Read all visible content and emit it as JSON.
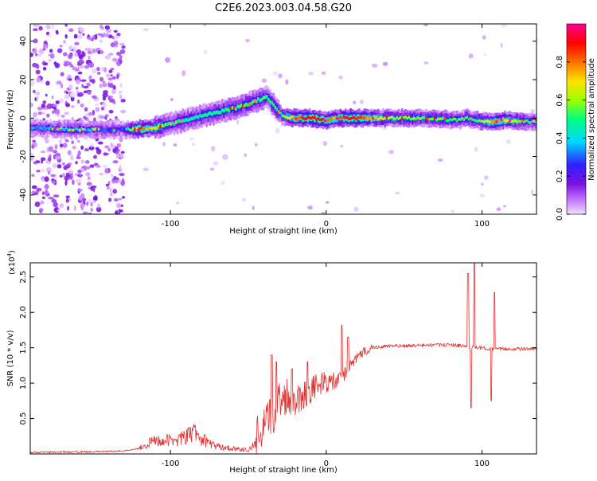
{
  "title": "C2E6.2023.003.04.58.G20",
  "chart_data": [
    {
      "type": "heatmap",
      "xlabel": "Height of straight line (km)",
      "ylabel": "Frequency (Hz)",
      "xlim": [
        -190,
        135
      ],
      "ylim": [
        -50,
        49
      ],
      "x_ticks": [
        -100,
        0,
        100
      ],
      "y_ticks": [
        -40,
        -20,
        0,
        20,
        40
      ],
      "colorbar": {
        "label": "Normalized spectral amplitude",
        "range": [
          0.0,
          1.0
        ],
        "ticks": [
          0.0,
          0.2,
          0.4,
          0.6,
          0.8
        ],
        "tick_labels": [
          "0.0",
          "0.2",
          "0.4",
          "0.6",
          "0.8"
        ],
        "colors": [
          "#f0e0ff",
          "#c070ff",
          "#7a10e0",
          "#3020ff",
          "#00d8ff",
          "#00ff80",
          "#a0ff00",
          "#ffe000",
          "#ff7000",
          "#ff0000",
          "#ff0090"
        ]
      },
      "ridge_center_hz": [
        [
          -190,
          -5
        ],
        [
          -160,
          -6
        ],
        [
          -135,
          -6
        ],
        [
          -125,
          -6
        ],
        [
          -110,
          -5
        ],
        [
          -95,
          -2
        ],
        [
          -80,
          1
        ],
        [
          -65,
          4
        ],
        [
          -55,
          6
        ],
        [
          -45,
          9
        ],
        [
          -38,
          11
        ],
        [
          -33,
          6
        ],
        [
          -28,
          1
        ],
        [
          -20,
          0
        ],
        [
          -10,
          0
        ],
        [
          0,
          -1
        ],
        [
          10,
          0
        ],
        [
          30,
          0
        ],
        [
          60,
          0
        ],
        [
          85,
          -1
        ],
        [
          90,
          0
        ],
        [
          95,
          -1
        ],
        [
          105,
          -2
        ],
        [
          115,
          -1
        ],
        [
          135,
          -2
        ]
      ],
      "ridge_amplitude": [
        [
          -190,
          0.35
        ],
        [
          -160,
          0.4
        ],
        [
          -130,
          0.3
        ],
        [
          -120,
          0.85
        ],
        [
          -100,
          0.45
        ],
        [
          -80,
          0.45
        ],
        [
          -60,
          0.55
        ],
        [
          -45,
          0.5
        ],
        [
          -30,
          0.5
        ],
        [
          -15,
          0.9
        ],
        [
          -5,
          0.95
        ],
        [
          5,
          0.75
        ],
        [
          15,
          0.95
        ],
        [
          40,
          0.6
        ],
        [
          70,
          0.55
        ],
        [
          95,
          0.5
        ],
        [
          110,
          0.8
        ],
        [
          135,
          0.4
        ]
      ]
    },
    {
      "type": "line",
      "xlabel": "Height of straight line (km)",
      "ylabel": "SNR (10 * v/v)",
      "y_multiplier": "(x10",
      "y_multiplier_exp": "4",
      "y_multiplier_close": ")",
      "xlim": [
        -190,
        135
      ],
      "ylim": [
        0,
        2.7
      ],
      "x_ticks": [
        -100,
        0,
        100
      ],
      "y_ticks": [
        0.5,
        1.0,
        1.5,
        2.0,
        2.5
      ],
      "y_tick_labels": [
        "0.5",
        "1.0",
        "1.5",
        "2.0",
        "2.5"
      ],
      "line_color": "#e03030",
      "series_envelope": [
        [
          -190,
          0.02
        ],
        [
          -150,
          0.03
        ],
        [
          -130,
          0.04
        ],
        [
          -120,
          0.08
        ],
        [
          -110,
          0.18
        ],
        [
          -100,
          0.18
        ],
        [
          -90,
          0.22
        ],
        [
          -85,
          0.3
        ],
        [
          -80,
          0.2
        ],
        [
          -70,
          0.1
        ],
        [
          -50,
          0.05
        ],
        [
          -45,
          0.15
        ],
        [
          -40,
          0.3
        ],
        [
          -35,
          0.5
        ],
        [
          -30,
          0.75
        ],
        [
          -25,
          0.8
        ],
        [
          -20,
          0.75
        ],
        [
          -15,
          0.8
        ],
        [
          -10,
          0.9
        ],
        [
          -5,
          0.95
        ],
        [
          0,
          1.0
        ],
        [
          5,
          1.0
        ],
        [
          10,
          1.05
        ],
        [
          15,
          1.25
        ],
        [
          20,
          1.35
        ],
        [
          25,
          1.45
        ],
        [
          30,
          1.5
        ],
        [
          40,
          1.52
        ],
        [
          60,
          1.53
        ],
        [
          80,
          1.54
        ],
        [
          88,
          1.52
        ],
        [
          95,
          1.5
        ],
        [
          110,
          1.48
        ],
        [
          135,
          1.48
        ]
      ],
      "spikes": [
        [
          -35,
          1.4
        ],
        [
          -32,
          1.3
        ],
        [
          -22,
          1.2
        ],
        [
          -12,
          1.3
        ],
        [
          10,
          1.82
        ],
        [
          14,
          1.65
        ],
        [
          91,
          2.55
        ],
        [
          93,
          0.65
        ],
        [
          95,
          2.7
        ],
        [
          106,
          0.75
        ],
        [
          108,
          2.28
        ]
      ]
    }
  ]
}
